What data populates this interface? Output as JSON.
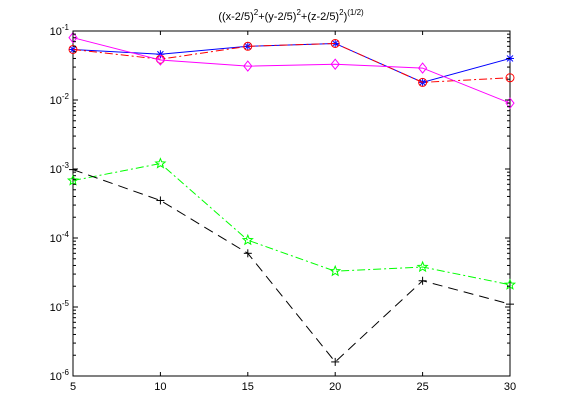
{
  "chart_data": {
    "type": "line",
    "title": {
      "parts": [
        {
          "text": "((x-2/5)"
        },
        {
          "text": "2",
          "sup": true
        },
        {
          "text": "+(y-2/5)"
        },
        {
          "text": "2",
          "sup": true
        },
        {
          "text": "+(z-2/5)"
        },
        {
          "text": "2",
          "sup": true
        },
        {
          "text": ")"
        },
        {
          "text": "(1/2)",
          "sup": true
        }
      ]
    },
    "xlabel": "",
    "ylabel": "",
    "x": [
      5,
      10,
      15,
      20,
      25,
      30
    ],
    "xlim": [
      5,
      30
    ],
    "ylim": [
      1e-06,
      0.1
    ],
    "yscale": "log",
    "grid": false,
    "legend": "none",
    "x_ticks": [
      5,
      10,
      15,
      20,
      25,
      30
    ],
    "x_tick_labels": [
      "5",
      "10",
      "15",
      "20",
      "25",
      "30"
    ],
    "y_ticks": [
      {
        "value": 0.1,
        "base": "10",
        "exp": "-1"
      },
      {
        "value": 0.01,
        "base": "10",
        "exp": "-2"
      },
      {
        "value": 0.001,
        "base": "10",
        "exp": "-3"
      },
      {
        "value": 0.0001,
        "base": "10",
        "exp": "-4"
      },
      {
        "value": 1e-05,
        "base": "10",
        "exp": "-5"
      },
      {
        "value": 1e-06,
        "base": "10",
        "exp": "-6"
      }
    ],
    "series": [
      {
        "values": [
          0.054,
          0.046,
          0.06,
          0.066,
          0.018,
          0.04
        ],
        "color": "#0000ff",
        "line": "solid",
        "marker": "asterisk"
      },
      {
        "values": [
          0.054,
          0.039,
          0.06,
          0.066,
          0.018,
          0.021
        ],
        "color": "#ff0000",
        "line": "dashdot",
        "marker": "circle"
      },
      {
        "values": [
          0.08,
          0.038,
          0.031,
          0.033,
          0.029,
          0.009
        ],
        "color": "#ff00ff",
        "line": "solid",
        "marker": "diamond"
      },
      {
        "values": [
          0.00068,
          0.0012,
          9.3e-05,
          3.3e-05,
          3.8e-05,
          2.1e-05
        ],
        "color": "#00ff00",
        "line": "dashdot",
        "marker": "pentagram"
      },
      {
        "values": [
          0.00098,
          0.00035,
          6e-05,
          1.6e-06,
          2.4e-05,
          1.1e-05
        ],
        "color": "#000000",
        "line": "dashed",
        "marker": "plus"
      }
    ]
  }
}
